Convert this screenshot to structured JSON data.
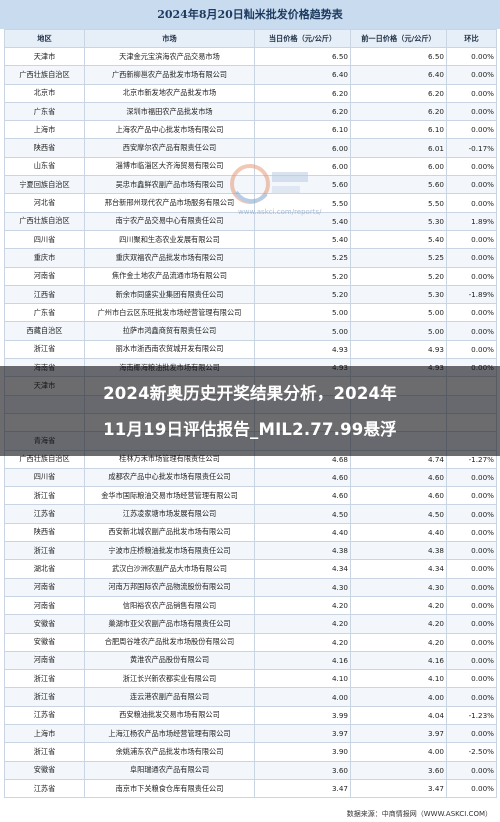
{
  "title": "2024年8月20日籼米批发价格趋势表",
  "columns": [
    "地区",
    "市场",
    "当日价格（元/公斤）",
    "前一日价格（元/公斤）",
    "环比"
  ],
  "rows": [
    [
      "天津市",
      "天津金元宝滨海农产品交易市场",
      "6.50",
      "6.50",
      "0.00%"
    ],
    [
      "广西壮族自治区",
      "广西新柳邕农产品批发市场有限公司",
      "6.40",
      "6.40",
      "0.00%"
    ],
    [
      "北京市",
      "北京市新发地农产品批发市场",
      "6.20",
      "6.20",
      "0.00%"
    ],
    [
      "广东省",
      "深圳市福田农产品批发市场",
      "6.20",
      "6.20",
      "0.00%"
    ],
    [
      "上海市",
      "上海农产品中心批发市场有限公司",
      "6.10",
      "6.10",
      "0.00%"
    ],
    [
      "陕西省",
      "西安摩尔农产品有限责任公司",
      "6.00",
      "6.01",
      "-0.17%"
    ],
    [
      "山东省",
      "淄博市临淄区大齐海贸易有限公司",
      "6.00",
      "6.00",
      "0.00%"
    ],
    [
      "宁夏回族自治区",
      "吴忠市鑫鲜农副产品市场有限公司",
      "5.60",
      "5.60",
      "0.00%"
    ],
    [
      "河北省",
      "邢台新邢州现代农产品市场服务有限公司",
      "5.50",
      "5.50",
      "0.00%"
    ],
    [
      "广西壮族自治区",
      "南宁农产品交易中心有限责任公司",
      "5.40",
      "5.30",
      "1.89%"
    ],
    [
      "四川省",
      "四川聚和生态农业发展有限公司",
      "5.40",
      "5.40",
      "0.00%"
    ],
    [
      "重庆市",
      "重庆双福农产品批发市场有限公司",
      "5.25",
      "5.25",
      "0.00%"
    ],
    [
      "河南省",
      "焦作金土地农产品流通市场有限公司",
      "5.20",
      "5.20",
      "0.00%"
    ],
    [
      "江西省",
      "新余市同盛实业集团有限责任公司",
      "5.20",
      "5.30",
      "-1.89%"
    ],
    [
      "广东省",
      "广州市白云区东旺批发市场经营管理有限公司",
      "5.00",
      "5.00",
      "0.00%"
    ],
    [
      "西藏自治区",
      "拉萨市鸿鑫商贸有限责任公司",
      "5.00",
      "5.00",
      "0.00%"
    ],
    [
      "浙江省",
      "丽水市浙西南农贸城开发有限公司",
      "4.93",
      "4.93",
      "0.00%"
    ],
    [
      "海南省",
      "海南椰海粮油批发市场有限公司",
      "4.93",
      "4.93",
      "0.00%"
    ],
    [
      "天津市",
      "",
      "",
      "",
      ""
    ],
    [
      "",
      "",
      "",
      "",
      ""
    ],
    [
      "",
      "",
      "",
      "",
      ""
    ],
    [
      "青海省",
      "",
      "",
      "",
      ""
    ],
    [
      "广西壮族自治区",
      "桂林万禾市场管理有限责任公司",
      "4.68",
      "4.74",
      "-1.27%"
    ],
    [
      "四川省",
      "成都农产品中心批发市场有限责任公司",
      "4.60",
      "4.60",
      "0.00%"
    ],
    [
      "浙江省",
      "金华市国际粮油交易市场经营管理有限公司",
      "4.60",
      "4.60",
      "0.00%"
    ],
    [
      "江苏省",
      "江苏凌家塘市场发展有限公司",
      "4.50",
      "4.50",
      "0.00%"
    ],
    [
      "陕西省",
      "西安新北城农副产品批发市场有限公司",
      "4.40",
      "4.40",
      "0.00%"
    ],
    [
      "浙江省",
      "宁波市庄桥粮油批发市场有限责任公司",
      "4.38",
      "4.38",
      "0.00%"
    ],
    [
      "湖北省",
      "武汉白沙洲农副产品大市场有限公司",
      "4.34",
      "4.34",
      "0.00%"
    ],
    [
      "河南省",
      "河南万邦国际农产品物流股份有限公司",
      "4.30",
      "4.30",
      "0.00%"
    ],
    [
      "河南省",
      "信阳裕农农产品销售有限公司",
      "4.20",
      "4.20",
      "0.00%"
    ],
    [
      "安徽省",
      "巢湖市亚父农副产品市场有限责任公司",
      "4.20",
      "4.20",
      "0.00%"
    ],
    [
      "安徽省",
      "合肥周谷堆农产品批发市场股份有限公司",
      "4.20",
      "4.20",
      "0.00%"
    ],
    [
      "河南省",
      "黄淮农产品股份有限公司",
      "4.16",
      "4.16",
      "0.00%"
    ],
    [
      "浙江省",
      "浙江长兴新农都实业有限公司",
      "4.10",
      "4.10",
      "0.00%"
    ],
    [
      "浙江省",
      "连云港农副产品有限公司",
      "4.00",
      "4.00",
      "0.00%"
    ],
    [
      "江苏省",
      "西安粮油批发交易市场有限公司",
      "3.99",
      "4.04",
      "-1.23%"
    ],
    [
      "上海市",
      "上海江杨农产品市场经营管理有限公司",
      "3.97",
      "3.97",
      "0.00%"
    ],
    [
      "浙江省",
      "余姚浦东农产品批发市场有限公司",
      "3.90",
      "4.00",
      "-2.50%"
    ],
    [
      "安徽省",
      "阜阳瑞通农产品有限公司",
      "3.60",
      "3.60",
      "0.00%"
    ],
    [
      "江苏省",
      "南京市下关粮食仓库有限责任公司",
      "3.47",
      "3.47",
      "0.00%"
    ]
  ],
  "watermark": {
    "text": "www.askci.com/reports/"
  },
  "banner": {
    "line1": "2024新奥历史开奖结果分析，2024年",
    "line2": "11月19日评估报告_MIL2.77.99悬浮"
  },
  "footer": {
    "text": "数据来源：中商情报网（WWW.ASKCI.COM）"
  }
}
